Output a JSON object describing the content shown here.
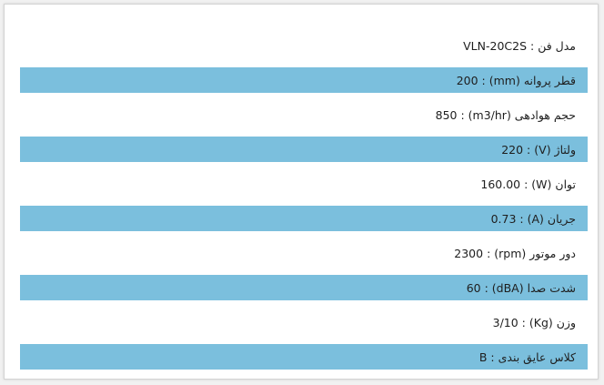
{
  "specs": [
    {
      "label": "مدل فن : VLN-20C2S",
      "striped": false
    },
    {
      "label": "قطر پروانه (mm) : 200",
      "striped": true
    },
    {
      "label": "حجم هوادهی (m3/hr) : 850",
      "striped": false
    },
    {
      "label": "ولتاژ (V) : 220",
      "striped": true
    },
    {
      "label": "توان (W) : 160.00",
      "striped": false
    },
    {
      "label": "جریان (A) : 0.73",
      "striped": true
    },
    {
      "label": "دور موتور (rpm) : 2300",
      "striped": false
    },
    {
      "label": "شدت صدا (dBA) : 60",
      "striped": true
    },
    {
      "label": "وزن (Kg) : 3/10",
      "striped": false
    },
    {
      "label": "کلاس عایق بندی : B",
      "striped": true
    }
  ]
}
